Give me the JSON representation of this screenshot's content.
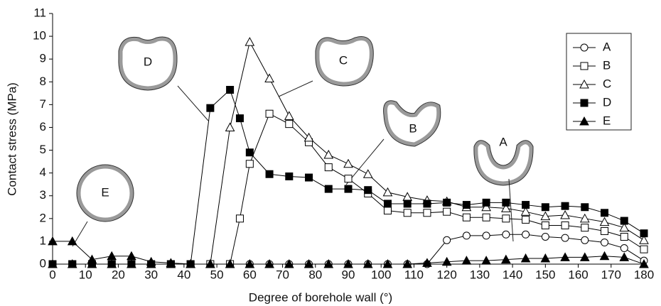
{
  "chart_data": {
    "type": "line",
    "x_label": "Degree of borehole wall (°)",
    "y_label": "Contact stress (MPa)",
    "xlim": [
      0,
      180
    ],
    "xticks": [
      0,
      10,
      20,
      30,
      40,
      50,
      60,
      70,
      80,
      90,
      100,
      110,
      120,
      130,
      140,
      150,
      160,
      170,
      180
    ],
    "ylim": [
      0,
      11
    ],
    "yticks": [
      0,
      1,
      2,
      3,
      4,
      5,
      6,
      7,
      8,
      9,
      10,
      11
    ],
    "legend": "upper right",
    "series": [
      {
        "name": "A",
        "color": "#000000",
        "marker": "circle-open",
        "x": [
          0,
          6,
          12,
          18,
          24,
          30,
          36,
          42,
          48,
          54,
          60,
          66,
          72,
          78,
          84,
          90,
          96,
          102,
          108,
          114,
          120,
          126,
          132,
          138,
          144,
          150,
          156,
          162,
          168,
          174,
          180
        ],
        "values": [
          0,
          0,
          0,
          0,
          0,
          0,
          0,
          0,
          0,
          0,
          0,
          0,
          0,
          0,
          0,
          0,
          0,
          0,
          0,
          0,
          1.05,
          1.25,
          1.25,
          1.3,
          1.3,
          1.2,
          1.15,
          1.05,
          0.95,
          0.7,
          0.15
        ]
      },
      {
        "name": "B",
        "color": "#000000",
        "marker": "square-open",
        "x": [
          0,
          6,
          12,
          18,
          24,
          30,
          36,
          42,
          48,
          54,
          57,
          60,
          66,
          72,
          78,
          84,
          90,
          96,
          102,
          108,
          114,
          120,
          126,
          132,
          138,
          144,
          150,
          156,
          162,
          168,
          174,
          180
        ],
        "values": [
          0,
          0,
          0,
          0,
          0,
          0,
          0,
          0,
          0,
          0,
          2.0,
          4.4,
          6.6,
          6.15,
          5.35,
          4.25,
          3.75,
          3.1,
          2.35,
          2.25,
          2.25,
          2.3,
          2.05,
          2.05,
          2.0,
          1.95,
          1.7,
          1.7,
          1.6,
          1.45,
          1.2,
          0.65
        ]
      },
      {
        "name": "C",
        "color": "#000000",
        "marker": "triangle-open",
        "x": [
          0,
          6,
          12,
          18,
          24,
          30,
          36,
          42,
          48,
          54,
          60,
          66,
          72,
          78,
          84,
          90,
          96,
          102,
          108,
          114,
          120,
          126,
          132,
          138,
          144,
          150,
          156,
          162,
          168,
          174,
          180
        ],
        "values": [
          0,
          0,
          0,
          0,
          0,
          0,
          0,
          0,
          0,
          6.0,
          9.75,
          8.15,
          6.5,
          5.55,
          4.8,
          4.4,
          3.95,
          3.15,
          2.95,
          2.8,
          2.75,
          2.5,
          2.5,
          2.45,
          2.3,
          2.1,
          2.15,
          2.0,
          1.85,
          1.6,
          1.05
        ]
      },
      {
        "name": "D",
        "color": "#000000",
        "marker": "square-filled",
        "x": [
          0,
          6,
          12,
          18,
          24,
          30,
          36,
          42,
          48,
          54,
          57,
          60,
          66,
          72,
          78,
          84,
          90,
          96,
          102,
          108,
          114,
          120,
          126,
          132,
          138,
          144,
          150,
          156,
          162,
          168,
          174,
          180
        ],
        "values": [
          0,
          0,
          0,
          0,
          0,
          0,
          0,
          0,
          6.85,
          7.65,
          6.4,
          4.9,
          3.95,
          3.85,
          3.8,
          3.3,
          3.3,
          3.25,
          2.65,
          2.65,
          2.65,
          2.7,
          2.6,
          2.7,
          2.7,
          2.6,
          2.5,
          2.55,
          2.5,
          2.25,
          1.9,
          1.35
        ]
      },
      {
        "name": "E",
        "color": "#000000",
        "marker": "triangle-filled",
        "x": [
          0,
          6,
          12,
          18,
          24,
          30,
          36,
          42,
          48,
          54,
          60,
          66,
          72,
          78,
          84,
          90,
          96,
          102,
          108,
          114,
          120,
          126,
          132,
          138,
          144,
          150,
          156,
          162,
          168,
          174,
          180
        ],
        "values": [
          1.0,
          1.0,
          0.2,
          0.35,
          0.35,
          0.1,
          0.05,
          0,
          0,
          0,
          0,
          0,
          0,
          0,
          0,
          0,
          0,
          0,
          0,
          0.05,
          0.1,
          0.15,
          0.15,
          0.2,
          0.25,
          0.25,
          0.3,
          0.3,
          0.35,
          0.3,
          0
        ]
      }
    ],
    "annotations": [
      {
        "text": "D"
      },
      {
        "text": "C"
      },
      {
        "text": "B"
      },
      {
        "text": "A"
      },
      {
        "text": "E"
      }
    ]
  }
}
